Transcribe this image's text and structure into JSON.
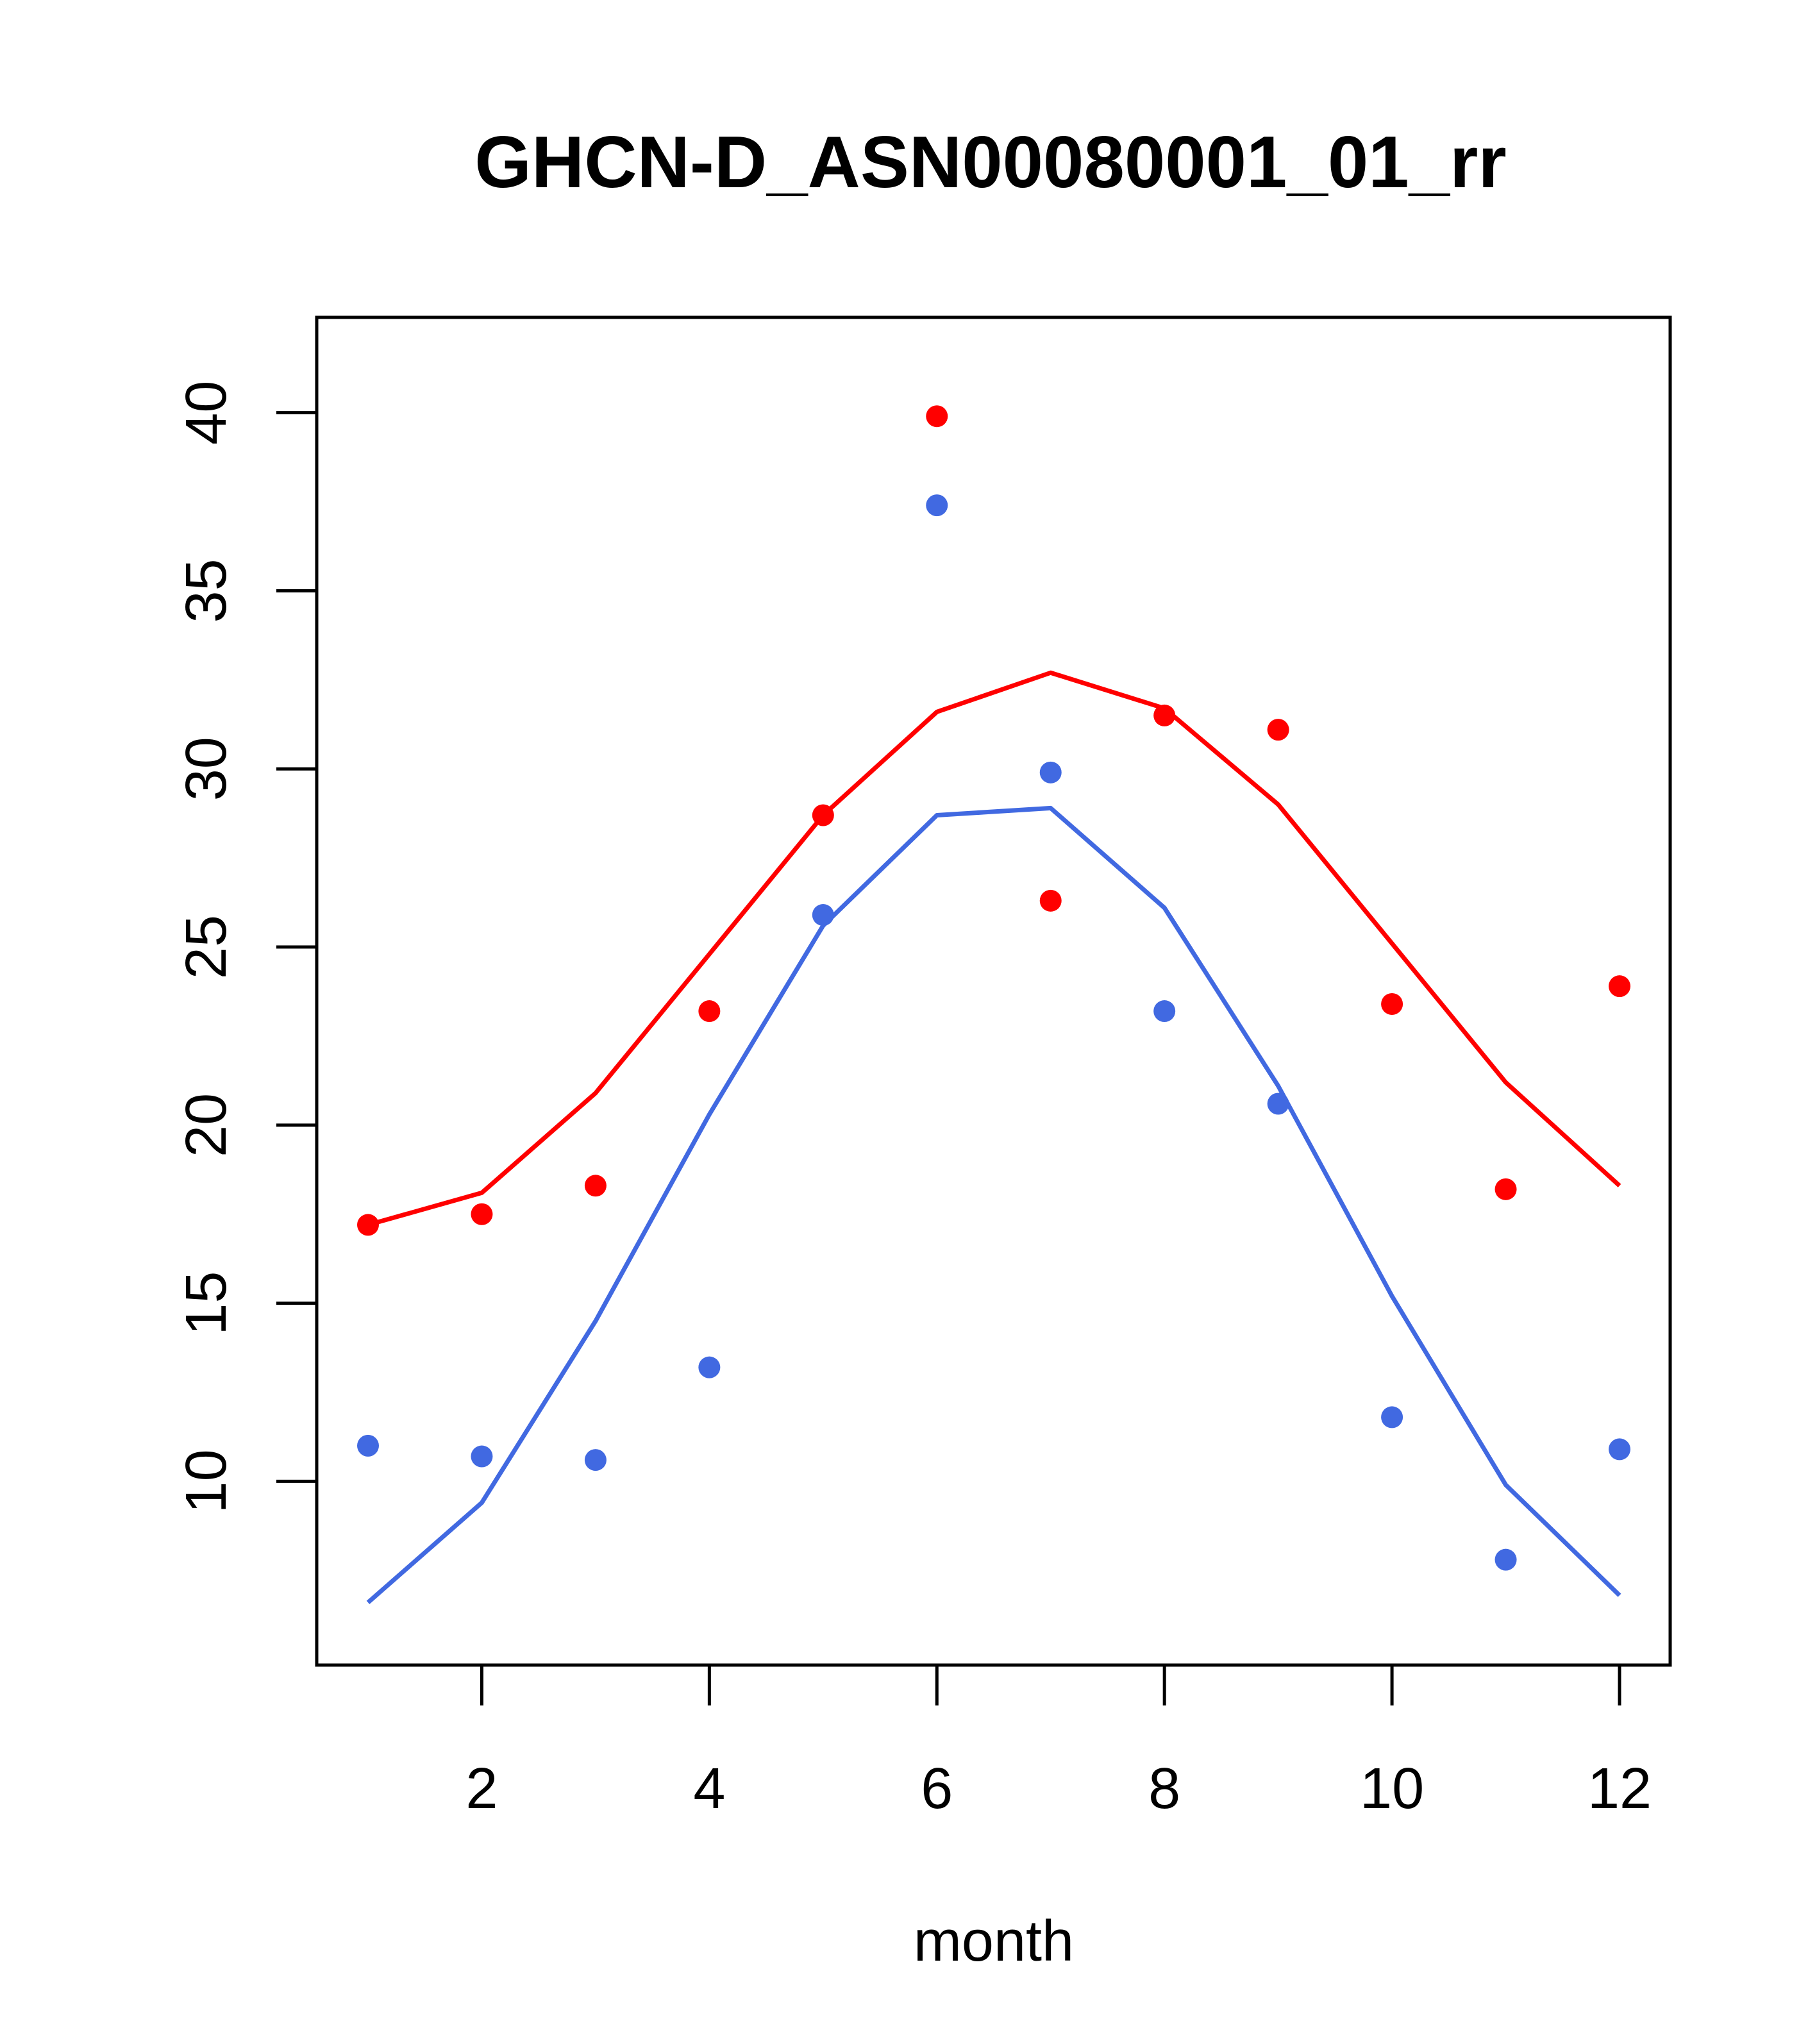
{
  "chart_data": {
    "type": "scatter",
    "title": "GHCN-D_ASN00080001_01_rr",
    "xlabel": "month",
    "ylabel": "",
    "xlim": [
      1,
      12
    ],
    "ylim": [
      6.3,
      41.2
    ],
    "x_ticks": [
      2,
      4,
      6,
      8,
      10,
      12
    ],
    "y_ticks": [
      10,
      15,
      20,
      25,
      30,
      35,
      40
    ],
    "grid": false,
    "legend": "none",
    "x": [
      1,
      2,
      3,
      4,
      5,
      6,
      7,
      8,
      9,
      10,
      11,
      12
    ],
    "series": [
      {
        "color": "#ff0000",
        "points": [
          17.2,
          17.5,
          18.3,
          23.2,
          28.7,
          39.9,
          26.3,
          31.5,
          31.1,
          23.4,
          18.2,
          23.9
        ],
        "line": [
          17.2,
          18.1,
          20.9,
          24.8,
          28.7,
          31.6,
          32.7,
          31.7,
          29.0,
          25.1,
          21.2,
          18.3
        ]
      },
      {
        "color": "#4169e1",
        "points": [
          11.0,
          10.7,
          10.6,
          13.2,
          25.9,
          37.4,
          29.9,
          23.2,
          20.6,
          11.8,
          7.8,
          10.9
        ],
        "line": [
          6.6,
          9.4,
          14.5,
          20.3,
          25.6,
          28.7,
          28.9,
          26.1,
          21.1,
          15.2,
          9.9,
          6.8
        ]
      }
    ]
  }
}
